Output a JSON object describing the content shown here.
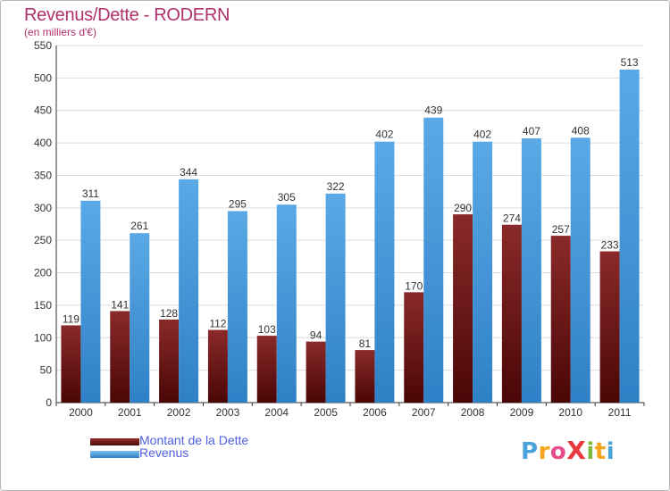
{
  "chart_data": {
    "type": "bar",
    "title": "Revenus/Dette - RODERN",
    "subtitle": "(en milliers d'€)",
    "categories": [
      "2000",
      "2001",
      "2002",
      "2003",
      "2004",
      "2005",
      "2006",
      "2007",
      "2008",
      "2009",
      "2010",
      "2011"
    ],
    "series": [
      {
        "name": "Montant de la Dette",
        "color": "#7a1c1c",
        "values": [
          119,
          141,
          128,
          112,
          103,
          94,
          81,
          170,
          290,
          274,
          257,
          233
        ]
      },
      {
        "name": "Revenus",
        "color": "#4a9ee0",
        "values": [
          311,
          261,
          344,
          295,
          305,
          322,
          402,
          439,
          402,
          407,
          408,
          513
        ]
      }
    ],
    "ylim": [
      0,
      550
    ],
    "yticks": [
      0,
      50,
      100,
      150,
      200,
      250,
      300,
      350,
      400,
      450,
      500,
      550
    ],
    "grid": true,
    "legend": "bottom-left"
  },
  "logo": {
    "text": "Proxiti",
    "letters": [
      {
        "ch": "P",
        "color": "#4ba3dc"
      },
      {
        "ch": "r",
        "color": "#f4a51c"
      },
      {
        "ch": "o",
        "color": "#e64b8c"
      },
      {
        "ch": "X",
        "color": "#e8383d"
      },
      {
        "ch": "i",
        "color": "#7dbb3c"
      },
      {
        "ch": "t",
        "color": "#f4a51c"
      },
      {
        "ch": "i",
        "color": "#4ba3dc"
      }
    ]
  }
}
